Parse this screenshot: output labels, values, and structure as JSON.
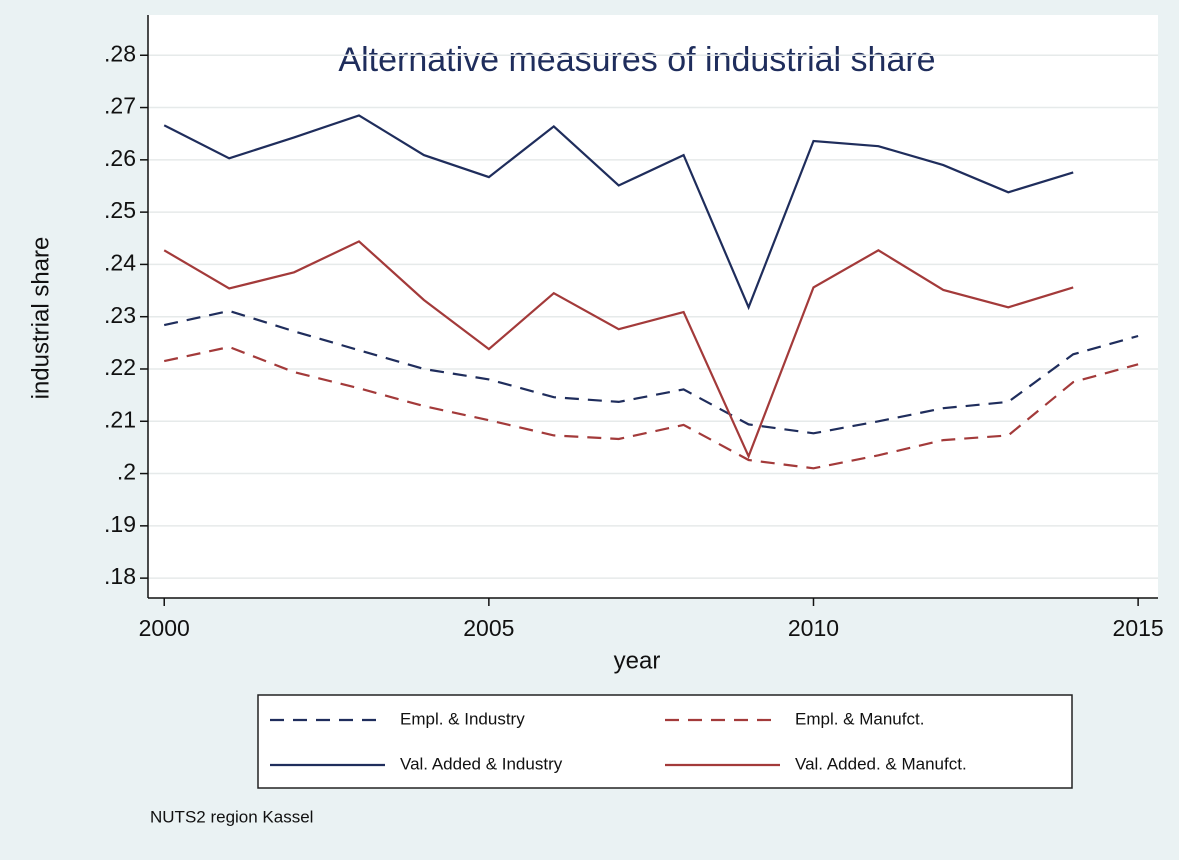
{
  "chart_data": {
    "type": "line",
    "title": "Alternative measures of industrial share",
    "x_label": "year",
    "y_label": "industrial share",
    "note": "NUTS2 region Kassel",
    "x": [
      2000,
      2001,
      2002,
      2003,
      2004,
      2005,
      2006,
      2007,
      2008,
      2009,
      2010,
      2011,
      2012,
      2013,
      2014,
      2015
    ],
    "series": [
      {
        "name": "Empl. & Industry",
        "color": "#1f2d5c",
        "dash": true,
        "values": [
          0.2284,
          0.2311,
          0.2272,
          0.2236,
          0.22,
          0.218,
          0.2146,
          0.2137,
          0.2161,
          0.2094,
          0.2077,
          0.21,
          0.2125,
          0.2137,
          0.2228,
          0.2263
        ]
      },
      {
        "name": "Empl. & Manufct.",
        "color": "#a33a3a",
        "dash": true,
        "values": [
          0.2215,
          0.2242,
          0.2194,
          0.2163,
          0.2129,
          0.2102,
          0.2073,
          0.2066,
          0.2093,
          0.2026,
          0.201,
          0.2035,
          0.2064,
          0.2073,
          0.2175,
          0.2209
        ]
      },
      {
        "name": "Val. Added & Industry",
        "color": "#1f2d5c",
        "dash": false,
        "values": [
          0.2666,
          0.2603,
          0.2643,
          0.2685,
          0.2609,
          0.2567,
          0.2664,
          0.2551,
          0.2609,
          0.2318,
          0.2636,
          0.2626,
          0.259,
          0.2538,
          0.2576,
          null
        ]
      },
      {
        "name": "Val. Added. & Manufct.",
        "color": "#a33a3a",
        "dash": false,
        "values": [
          0.2427,
          0.2354,
          0.2385,
          0.2444,
          0.2332,
          0.2238,
          0.2345,
          0.2276,
          0.2309,
          0.2033,
          0.2356,
          0.2427,
          0.2351,
          0.2318,
          0.2356,
          null
        ]
      }
    ],
    "xlim": [
      1999.75,
      2015.26
    ],
    "ylim": [
      0.1762,
      0.2877
    ],
    "xticks": [
      2000,
      2005,
      2010,
      2015
    ],
    "yticks": [
      {
        "value": 0.18,
        "label": ".18"
      },
      {
        "value": 0.19,
        "label": ".19"
      },
      {
        "value": 0.2,
        "label": ".2"
      },
      {
        "value": 0.21,
        "label": ".21"
      },
      {
        "value": 0.22,
        "label": ".22"
      },
      {
        "value": 0.23,
        "label": ".23"
      },
      {
        "value": 0.24,
        "label": ".24"
      },
      {
        "value": 0.25,
        "label": ".25"
      },
      {
        "value": 0.26,
        "label": ".26"
      },
      {
        "value": 0.27,
        "label": ".27"
      },
      {
        "value": 0.28,
        "label": ".28"
      }
    ],
    "grid": true
  }
}
